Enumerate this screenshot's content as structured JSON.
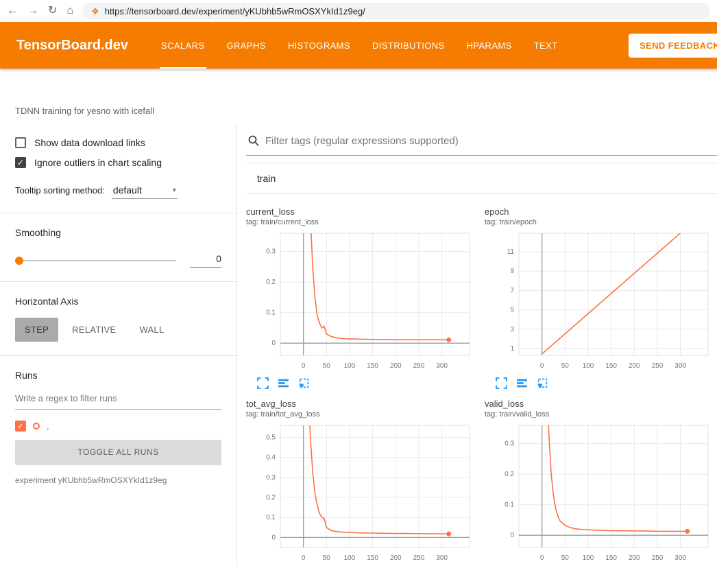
{
  "browser": {
    "url": "https://tensorboard.dev/experiment/yKUbhb5wRmOSXYkId1z9eg/"
  },
  "icons": {
    "back": "←",
    "forward": "→",
    "reload": "↻",
    "home": "⌂",
    "favicon": "❖",
    "dropdown_caret": "▾",
    "checkmark": "✓"
  },
  "header": {
    "logo": "TensorBoard.dev",
    "tabs": [
      {
        "label": "SCALARS",
        "active": true
      },
      {
        "label": "GRAPHS",
        "active": false
      },
      {
        "label": "HISTOGRAMS",
        "active": false
      },
      {
        "label": "DISTRIBUTIONS",
        "active": false
      },
      {
        "label": "HPARAMS",
        "active": false
      },
      {
        "label": "TEXT",
        "active": false
      }
    ],
    "feedback_label": "SEND FEEDBACK"
  },
  "experiment_title": "TDNN training for yesno with icefall",
  "sidebar": {
    "show_download_label": "Show data download links",
    "ignore_outliers_label": "Ignore outliers in chart scaling",
    "tooltip_sorting_label": "Tooltip sorting method:",
    "tooltip_sorting_value": "default",
    "smoothing_label": "Smoothing",
    "smoothing_value": "0",
    "horizontal_axis_label": "Horizontal Axis",
    "axis_buttons": [
      "STEP",
      "RELATIVE",
      "WALL"
    ],
    "runs_label": "Runs",
    "runs_filter_placeholder": "Write a regex to filter runs",
    "run_name": ".",
    "toggle_all_label": "TOGGLE ALL RUNS",
    "experiment_caption": "experiment yKUbhb5wRmOSXYkId1z9eg"
  },
  "main": {
    "filter_placeholder": "Filter tags (regular expressions supported)",
    "section_label": "train"
  },
  "colors": {
    "header_orange": "#f57c00",
    "run_color": "#ff7043",
    "icon_blue": "#2196f3"
  },
  "chart_data": [
    {
      "type": "line",
      "title": "current_loss",
      "tag": "tag: train/current_loss",
      "x": [
        0,
        5,
        10,
        15,
        20,
        25,
        30,
        35,
        40,
        45,
        50,
        60,
        70,
        85,
        100,
        125,
        150,
        175,
        200,
        225,
        250,
        275,
        300,
        315
      ],
      "y": [
        2.0,
        1.2,
        0.7,
        0.42,
        0.25,
        0.15,
        0.09,
        0.065,
        0.05,
        0.055,
        0.03,
        0.022,
        0.018,
        0.015,
        0.014,
        0.013,
        0.012,
        0.012,
        0.011,
        0.011,
        0.011,
        0.011,
        0.011,
        0.011
      ],
      "xlim": [
        -50,
        360
      ],
      "ylim": [
        -0.04,
        0.36
      ],
      "xticks": [
        0,
        50,
        100,
        150,
        200,
        250,
        300
      ],
      "yticks": [
        0,
        0.1,
        0.2,
        0.3
      ],
      "end_dot": true
    },
    {
      "type": "line",
      "title": "epoch",
      "tag": "tag: train/epoch",
      "x": [
        0,
        315
      ],
      "y": [
        0.45,
        13.55
      ],
      "xlim": [
        -50,
        360
      ],
      "ylim": [
        0.3,
        12.9
      ],
      "xticks": [
        0,
        50,
        100,
        150,
        200,
        250,
        300
      ],
      "yticks": [
        1,
        3,
        5,
        7,
        9,
        11
      ],
      "end_dot": false
    },
    {
      "type": "line",
      "title": "tot_avg_loss",
      "tag": "tag: train/tot_avg_loss",
      "x": [
        0,
        5,
        10,
        15,
        20,
        25,
        30,
        35,
        40,
        45,
        50,
        60,
        70,
        85,
        100,
        125,
        150,
        175,
        200,
        225,
        250,
        275,
        300,
        315
      ],
      "y": [
        2.0,
        1.3,
        0.8,
        0.5,
        0.33,
        0.22,
        0.16,
        0.12,
        0.1,
        0.095,
        0.05,
        0.035,
        0.03,
        0.027,
        0.025,
        0.023,
        0.022,
        0.021,
        0.02,
        0.02,
        0.019,
        0.019,
        0.018,
        0.018
      ],
      "xlim": [
        -50,
        360
      ],
      "ylim": [
        -0.05,
        0.56
      ],
      "xticks": [
        0,
        50,
        100,
        150,
        200,
        250,
        300
      ],
      "yticks": [
        0,
        0.1,
        0.2,
        0.3,
        0.4,
        0.5
      ],
      "end_dot": true
    },
    {
      "type": "line",
      "title": "valid_loss",
      "tag": "tag: train/valid_loss",
      "x": [
        0,
        5,
        10,
        15,
        20,
        25,
        30,
        35,
        40,
        45,
        50,
        60,
        70,
        85,
        100,
        125,
        150,
        175,
        200,
        225,
        250,
        275,
        300,
        315
      ],
      "y": [
        1.5,
        0.9,
        0.55,
        0.33,
        0.2,
        0.13,
        0.085,
        0.06,
        0.045,
        0.04,
        0.032,
        0.026,
        0.022,
        0.019,
        0.018,
        0.016,
        0.015,
        0.015,
        0.014,
        0.014,
        0.013,
        0.013,
        0.013,
        0.013
      ],
      "xlim": [
        -50,
        360
      ],
      "ylim": [
        -0.04,
        0.36
      ],
      "xticks": [
        0,
        50,
        100,
        150,
        200,
        250,
        300
      ],
      "yticks": [
        0,
        0.1,
        0.2,
        0.3
      ],
      "end_dot": true
    }
  ]
}
